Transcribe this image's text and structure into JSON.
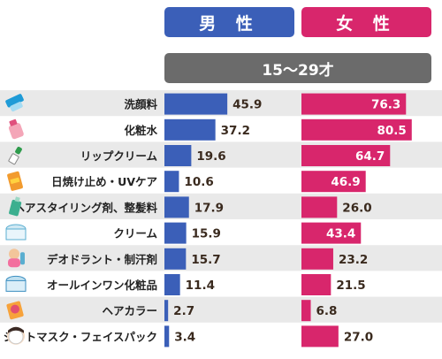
{
  "header": {
    "male_label": "男 性",
    "female_label": "女 性",
    "age_band": "15〜29才"
  },
  "colors": {
    "male": "#3b5fb8",
    "female": "#d8266c",
    "stripe": "#e9e9e9",
    "age_band": "#6b6b6b"
  },
  "chart_data": {
    "type": "bar",
    "categories": [
      "洗顔料",
      "化粧水",
      "リップクリーム",
      "日焼け止め・UVケア",
      "ヘアスタイリング剤、整髪料",
      "クリーム",
      "デオドラント・制汗剤",
      "オールインワン化粧品",
      "ヘアカラー",
      "シートマスク・フェイスパック"
    ],
    "series": [
      {
        "name": "男 性",
        "values": [
          45.9,
          37.2,
          19.6,
          10.6,
          17.9,
          15.9,
          15.7,
          11.4,
          2.7,
          3.4
        ]
      },
      {
        "name": "女 性",
        "values": [
          76.3,
          80.5,
          64.7,
          46.9,
          26.0,
          43.4,
          23.2,
          21.5,
          6.8,
          27.0
        ]
      }
    ],
    "icons": [
      "face-wash-tube-icon",
      "lotion-bottle-icon",
      "lip-balm-icon",
      "sunscreen-icon",
      "hair-styling-icon",
      "cream-jar-icon",
      "deodorant-icon",
      "all-in-one-jar-icon",
      "hair-color-icon",
      "sheet-mask-icon"
    ],
    "xlim": [
      0,
      100
    ],
    "subtitle": "15〜29才"
  }
}
